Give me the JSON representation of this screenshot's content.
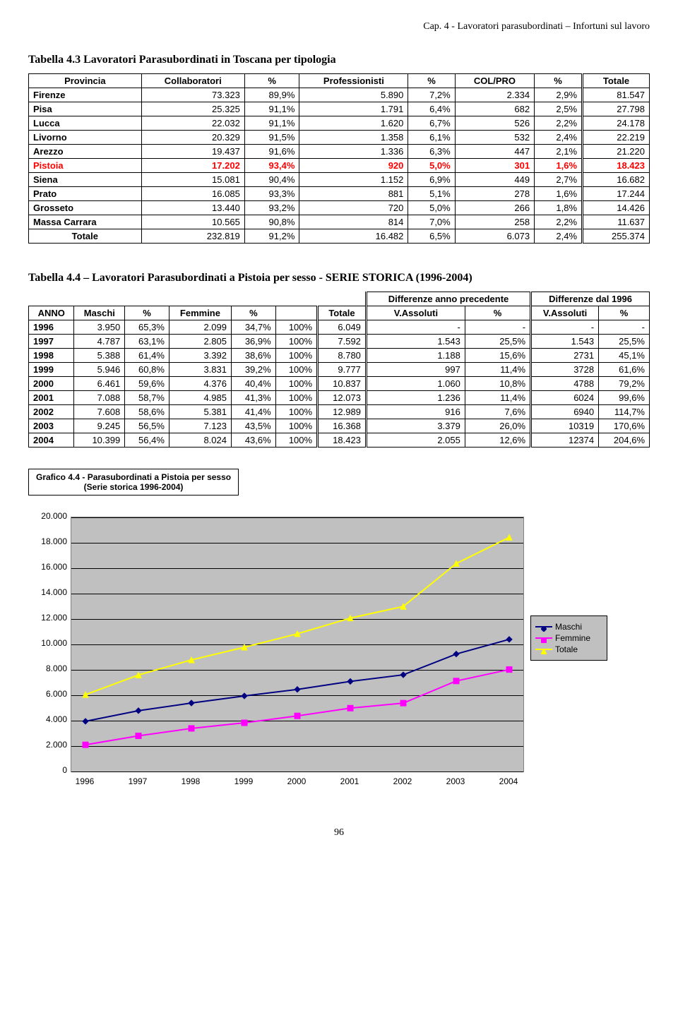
{
  "header_note": "Cap. 4 - Lavoratori parasubordinati – Infortuni sul lavoro",
  "table3": {
    "title": "Tabella 4.3 Lavoratori Parasubordinati in Toscana per tipologia",
    "columns": [
      "Provincia",
      "Collaboratori",
      "%",
      "Professionisti",
      "%",
      "COL/PRO",
      "%",
      "Totale"
    ],
    "rows": [
      {
        "label": "Firenze",
        "v": [
          "73.323",
          "89,9%",
          "5.890",
          "7,2%",
          "2.334",
          "2,9%",
          "81.547"
        ]
      },
      {
        "label": "Pisa",
        "v": [
          "25.325",
          "91,1%",
          "1.791",
          "6,4%",
          "682",
          "2,5%",
          "27.798"
        ]
      },
      {
        "label": "Lucca",
        "v": [
          "22.032",
          "91,1%",
          "1.620",
          "6,7%",
          "526",
          "2,2%",
          "24.178"
        ]
      },
      {
        "label": "Livorno",
        "v": [
          "20.329",
          "91,5%",
          "1.358",
          "6,1%",
          "532",
          "2,4%",
          "22.219"
        ]
      },
      {
        "label": "Arezzo",
        "v": [
          "19.437",
          "91,6%",
          "1.336",
          "6,3%",
          "447",
          "2,1%",
          "21.220"
        ]
      },
      {
        "label": "Pistoia",
        "v": [
          "17.202",
          "93,4%",
          "920",
          "5,0%",
          "301",
          "1,6%",
          "18.423"
        ],
        "highlight": true
      },
      {
        "label": "Siena",
        "v": [
          "15.081",
          "90,4%",
          "1.152",
          "6,9%",
          "449",
          "2,7%",
          "16.682"
        ]
      },
      {
        "label": "Prato",
        "v": [
          "16.085",
          "93,3%",
          "881",
          "5,1%",
          "278",
          "1,6%",
          "17.244"
        ]
      },
      {
        "label": "Grosseto",
        "v": [
          "13.440",
          "93,2%",
          "720",
          "5,0%",
          "266",
          "1,8%",
          "14.426"
        ]
      },
      {
        "label": "Massa Carrara",
        "v": [
          "10.565",
          "90,8%",
          "814",
          "7,0%",
          "258",
          "2,2%",
          "11.637"
        ]
      },
      {
        "label": "Totale",
        "v": [
          "232.819",
          "91,2%",
          "16.482",
          "6,5%",
          "6.073",
          "2,4%",
          "255.374"
        ],
        "total": true
      }
    ]
  },
  "table4": {
    "title": "Tabella  4.4 – Lavoratori Parasubordinati a Pistoia per sesso - SERIE STORICA (1996-2004)",
    "sup_header1": "Differenze anno precedente",
    "sup_header2": "Differenze dal 1996",
    "columns": [
      "ANNO",
      "Maschi",
      "%",
      "Femmine",
      "%",
      "",
      "Totale",
      "V.Assoluti",
      "%",
      "V.Assoluti",
      "%"
    ],
    "rows": [
      [
        "1996",
        "3.950",
        "65,3%",
        "2.099",
        "34,7%",
        "100%",
        "6.049",
        "-",
        "-",
        "-",
        "-"
      ],
      [
        "1997",
        "4.787",
        "63,1%",
        "2.805",
        "36,9%",
        "100%",
        "7.592",
        "1.543",
        "25,5%",
        "1.543",
        "25,5%"
      ],
      [
        "1998",
        "5.388",
        "61,4%",
        "3.392",
        "38,6%",
        "100%",
        "8.780",
        "1.188",
        "15,6%",
        "2731",
        "45,1%"
      ],
      [
        "1999",
        "5.946",
        "60,8%",
        "3.831",
        "39,2%",
        "100%",
        "9.777",
        "997",
        "11,4%",
        "3728",
        "61,6%"
      ],
      [
        "2000",
        "6.461",
        "59,6%",
        "4.376",
        "40,4%",
        "100%",
        "10.837",
        "1.060",
        "10,8%",
        "4788",
        "79,2%"
      ],
      [
        "2001",
        "7.088",
        "58,7%",
        "4.985",
        "41,3%",
        "100%",
        "12.073",
        "1.236",
        "11,4%",
        "6024",
        "99,6%"
      ],
      [
        "2002",
        "7.608",
        "58,6%",
        "5.381",
        "41,4%",
        "100%",
        "12.989",
        "916",
        "7,6%",
        "6940",
        "114,7%"
      ],
      [
        "2003",
        "9.245",
        "56,5%",
        "7.123",
        "43,5%",
        "100%",
        "16.368",
        "3.379",
        "26,0%",
        "10319",
        "170,6%"
      ],
      [
        "2004",
        "10.399",
        "56,4%",
        "8.024",
        "43,6%",
        "100%",
        "18.423",
        "2.055",
        "12,6%",
        "12374",
        "204,6%"
      ]
    ]
  },
  "chart": {
    "box_title_line1": "Grafico 4.4 - Parasubordinati a Pistoia per sesso",
    "box_title_line2": "(Serie storica 1996-2004)",
    "type": "line",
    "background_color": "#c0c0c0",
    "grid_color": "#000000",
    "ylim": [
      0,
      20000
    ],
    "ytick_step": 2000,
    "yticks": [
      "0",
      "2.000",
      "4.000",
      "6.000",
      "8.000",
      "10.000",
      "12.000",
      "14.000",
      "16.000",
      "18.000",
      "20.000"
    ],
    "years": [
      "1996",
      "1997",
      "1998",
      "1999",
      "2000",
      "2001",
      "2002",
      "2003",
      "2004"
    ],
    "series": [
      {
        "name": "Maschi",
        "color": "#000080",
        "marker": "diamond",
        "marker_fill": "#000080",
        "values": [
          3950,
          4787,
          5388,
          5946,
          6461,
          7088,
          7608,
          9245,
          10399
        ]
      },
      {
        "name": "Femmine",
        "color": "#ff00ff",
        "marker": "square",
        "marker_fill": "#ff00ff",
        "values": [
          2099,
          2805,
          3392,
          3831,
          4376,
          4985,
          5381,
          7123,
          8024
        ]
      },
      {
        "name": "Totale",
        "color": "#ffff00",
        "marker": "triangle",
        "marker_fill": "#ffff00",
        "values": [
          6049,
          7592,
          8780,
          9777,
          10837,
          12073,
          12989,
          16368,
          18423
        ]
      }
    ],
    "line_width": 2,
    "marker_size": 8,
    "tick_fontsize": 12
  },
  "page_number": "96"
}
